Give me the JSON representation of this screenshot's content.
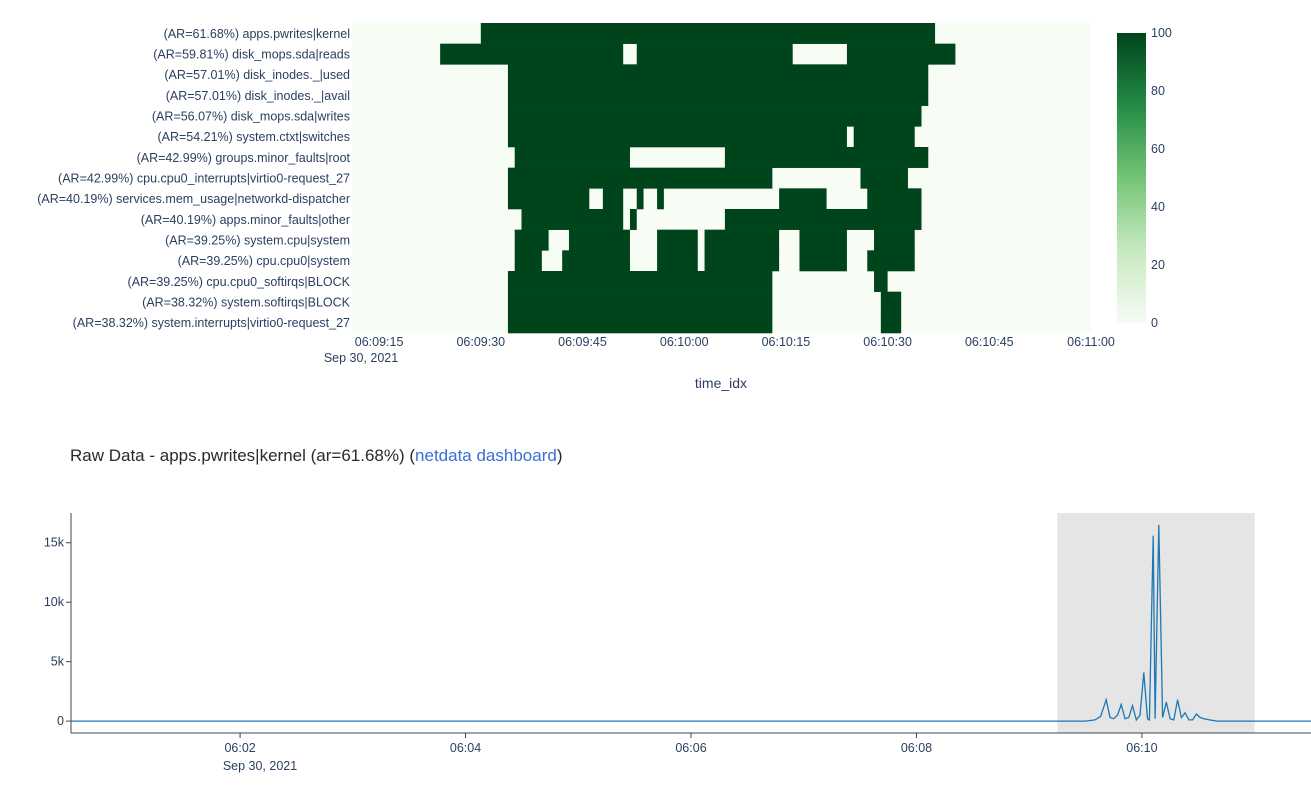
{
  "colors": {
    "heat_low": "#f7fcf5",
    "heat_high": "#00441b",
    "line": "#1f77b4",
    "highlight": "#e5e5e5",
    "link": "#3b6fd4"
  },
  "raw_title": {
    "prefix": "Raw Data - apps.pwrites|kernel (ar=61.68%) (",
    "link_text": "netdata dashboard",
    "suffix": ")"
  },
  "chart_data": [
    {
      "type": "heatmap",
      "xlabel": "time_idx",
      "x_range": [
        "2021-09-30 06:09:11",
        "2021-09-30 06:11:00"
      ],
      "x_ticks": [
        "06:09:15",
        "06:09:30",
        "06:09:45",
        "06:10:00",
        "06:10:15",
        "06:10:30",
        "06:10:45",
        "06:11:00"
      ],
      "x_tick_date": "Sep 30, 2021",
      "z_range": [
        0,
        100
      ],
      "colorbar_ticks": [
        "100",
        "80",
        "60",
        "40",
        "20",
        "0"
      ],
      "rows": [
        {
          "label": "(AR=61.68%) apps.pwrites|kernel",
          "segments": [
            [
              "06:09:30",
              "06:10:37"
            ]
          ]
        },
        {
          "label": "(AR=59.81%) disk_mops.sda|reads",
          "segments": [
            [
              "06:09:24",
              "06:09:51"
            ],
            [
              "06:09:53",
              "06:10:16"
            ],
            [
              "06:10:24",
              "06:10:40"
            ]
          ]
        },
        {
          "label": "(AR=57.01%) disk_inodes._|used",
          "segments": [
            [
              "06:09:34",
              "06:10:36"
            ]
          ]
        },
        {
          "label": "(AR=57.01%) disk_inodes._|avail",
          "segments": [
            [
              "06:09:34",
              "06:10:36"
            ]
          ]
        },
        {
          "label": "(AR=56.07%) disk_mops.sda|writes",
          "segments": [
            [
              "06:09:34",
              "06:10:35"
            ]
          ]
        },
        {
          "label": "(AR=54.21%) system.ctxt|switches",
          "segments": [
            [
              "06:09:34",
              "06:10:24"
            ],
            [
              "06:10:25",
              "06:10:34"
            ]
          ]
        },
        {
          "label": "(AR=42.99%) groups.minor_faults|root",
          "segments": [
            [
              "06:09:35",
              "06:09:52"
            ],
            [
              "06:10:06",
              "06:10:36"
            ]
          ]
        },
        {
          "label": "(AR=42.99%) cpu.cpu0_interrupts|virtio0-request_27",
          "segments": [
            [
              "06:09:34",
              "06:10:13"
            ],
            [
              "06:10:26",
              "06:10:33"
            ]
          ]
        },
        {
          "label": "(AR=40.19%) services.mem_usage|networkd-dispatcher",
          "segments": [
            [
              "06:09:34",
              "06:09:46"
            ],
            [
              "06:09:48",
              "06:09:51"
            ],
            [
              "06:09:53",
              "06:09:54"
            ],
            [
              "06:09:56",
              "06:09:57"
            ],
            [
              "06:10:14",
              "06:10:21"
            ],
            [
              "06:10:27",
              "06:10:35"
            ]
          ]
        },
        {
          "label": "(AR=40.19%) apps.minor_faults|other",
          "segments": [
            [
              "06:09:36",
              "06:09:51"
            ],
            [
              "06:09:52",
              "06:09:53"
            ],
            [
              "06:10:06",
              "06:10:35"
            ]
          ]
        },
        {
          "label": "(AR=39.25%) system.cpu|system",
          "segments": [
            [
              "06:09:35",
              "06:09:40"
            ],
            [
              "06:09:43",
              "06:09:52"
            ],
            [
              "06:09:56",
              "06:10:02"
            ],
            [
              "06:10:03",
              "06:10:14"
            ],
            [
              "06:10:17",
              "06:10:24"
            ],
            [
              "06:10:28",
              "06:10:34"
            ]
          ]
        },
        {
          "label": "(AR=39.25%) cpu.cpu0|system",
          "segments": [
            [
              "06:09:35",
              "06:09:39"
            ],
            [
              "06:09:42",
              "06:09:52"
            ],
            [
              "06:09:56",
              "06:10:02"
            ],
            [
              "06:10:03",
              "06:10:14"
            ],
            [
              "06:10:17",
              "06:10:24"
            ],
            [
              "06:10:27",
              "06:10:34"
            ]
          ]
        },
        {
          "label": "(AR=39.25%) cpu.cpu0_softirqs|BLOCK",
          "segments": [
            [
              "06:09:34",
              "06:10:13"
            ],
            [
              "06:10:28",
              "06:10:30"
            ]
          ]
        },
        {
          "label": "(AR=38.32%) system.softirqs|BLOCK",
          "segments": [
            [
              "06:09:34",
              "06:10:13"
            ],
            [
              "06:10:29",
              "06:10:32"
            ]
          ]
        },
        {
          "label": "(AR=38.32%) system.interrupts|virtio0-request_27",
          "segments": [
            [
              "06:09:34",
              "06:10:13"
            ],
            [
              "06:10:29",
              "06:10:32"
            ]
          ]
        }
      ]
    },
    {
      "type": "line",
      "x_range": [
        "2021-09-30 06:00:30",
        "2021-09-30 06:11:30"
      ],
      "ylim": [
        -1000,
        17500
      ],
      "x_ticks": [
        "06:02",
        "06:04",
        "06:06",
        "06:08",
        "06:10"
      ],
      "x_tick_date": "Sep 30, 2021",
      "y_ticks": [
        "0",
        "5k",
        "10k",
        "15k"
      ],
      "highlight_range": [
        "2021-09-30 06:09:15",
        "2021-09-30 06:11:00"
      ],
      "series": [
        {
          "x": [
            "2021-09-30 06:00:30",
            "2021-09-30 06:09:30",
            "2021-09-30 06:09:35",
            "2021-09-30 06:09:38",
            "2021-09-30 06:09:41",
            "2021-09-30 06:09:43",
            "2021-09-30 06:09:45",
            "2021-09-30 06:09:47",
            "2021-09-30 06:09:49",
            "2021-09-30 06:09:51",
            "2021-09-30 06:09:53",
            "2021-09-30 06:09:55",
            "2021-09-30 06:09:57",
            "2021-09-30 06:09:59",
            "2021-09-30 06:10:01",
            "2021-09-30 06:10:03",
            "2021-09-30 06:10:04",
            "2021-09-30 06:10:06",
            "2021-09-30 06:10:07",
            "2021-09-30 06:10:09",
            "2021-09-30 06:10:11",
            "2021-09-30 06:10:13",
            "2021-09-30 06:10:15",
            "2021-09-30 06:10:17",
            "2021-09-30 06:10:19",
            "2021-09-30 06:10:21",
            "2021-09-30 06:10:23",
            "2021-09-30 06:10:25",
            "2021-09-30 06:10:27",
            "2021-09-30 06:10:29",
            "2021-09-30 06:10:31",
            "2021-09-30 06:10:33",
            "2021-09-30 06:10:36",
            "2021-09-30 06:10:40",
            "2021-09-30 06:11:30"
          ],
          "y": [
            0,
            0,
            100,
            400,
            1800,
            300,
            200,
            500,
            1400,
            200,
            300,
            1300,
            100,
            500,
            4100,
            200,
            100,
            15600,
            200,
            16500,
            300,
            1600,
            200,
            100,
            1800,
            300,
            700,
            100,
            100,
            600,
            300,
            200,
            100,
            0,
            0
          ]
        }
      ]
    }
  ]
}
